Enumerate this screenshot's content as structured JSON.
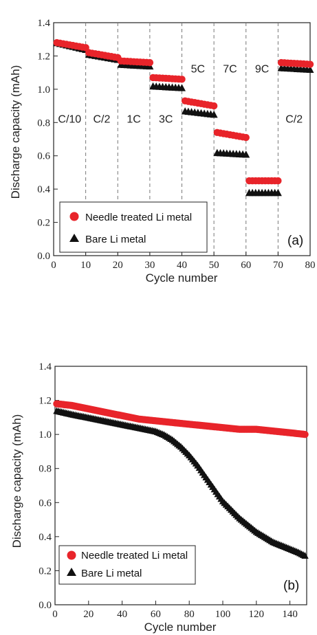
{
  "chart_data": [
    {
      "type": "scatter",
      "panel": "(a)",
      "xlabel": "Cycle number",
      "ylabel": "Discharge capacity (mAh)",
      "xlim": [
        0,
        80
      ],
      "ylim": [
        0.0,
        1.4
      ],
      "xticks": [
        0,
        10,
        20,
        30,
        40,
        50,
        60,
        70,
        80
      ],
      "yticks": [
        "0.0",
        "0.2",
        "0.4",
        "0.6",
        "0.8",
        "1.0",
        "1.2",
        "1.4"
      ],
      "grid": false,
      "legend_position": "bottom-left",
      "rate_boundaries": [
        10,
        20,
        30,
        40,
        50,
        60,
        70
      ],
      "rate_labels": [
        {
          "text": "C/10",
          "x": 5,
          "y": 0.8
        },
        {
          "text": "C/2",
          "x": 15,
          "y": 0.8
        },
        {
          "text": "1C",
          "x": 25,
          "y": 0.8
        },
        {
          "text": "3C",
          "x": 35,
          "y": 0.8
        },
        {
          "text": "5C",
          "x": 45,
          "y": 1.1
        },
        {
          "text": "7C",
          "x": 55,
          "y": 1.1
        },
        {
          "text": "9C",
          "x": 65,
          "y": 1.1
        },
        {
          "text": "C/2",
          "x": 75,
          "y": 0.8
        }
      ],
      "series": [
        {
          "name": "Needle treated Li metal",
          "marker": "circle",
          "color": "#e8242a",
          "segments": [
            {
              "x_start": 1,
              "x_end": 10,
              "y_start": 1.28,
              "y_end": 1.25
            },
            {
              "x_start": 11,
              "x_end": 20,
              "y_start": 1.22,
              "y_end": 1.19
            },
            {
              "x_start": 21,
              "x_end": 30,
              "y_start": 1.17,
              "y_end": 1.16
            },
            {
              "x_start": 31,
              "x_end": 40,
              "y_start": 1.07,
              "y_end": 1.06
            },
            {
              "x_start": 41,
              "x_end": 50,
              "y_start": 0.93,
              "y_end": 0.9
            },
            {
              "x_start": 51,
              "x_end": 60,
              "y_start": 0.74,
              "y_end": 0.71
            },
            {
              "x_start": 61,
              "x_end": 70,
              "y_start": 0.45,
              "y_end": 0.45
            },
            {
              "x_start": 71,
              "x_end": 80,
              "y_start": 1.16,
              "y_end": 1.15
            }
          ]
        },
        {
          "name": "Bare Li metal",
          "marker": "triangle",
          "color": "#111111",
          "segments": [
            {
              "x_start": 1,
              "x_end": 10,
              "y_start": 1.28,
              "y_end": 1.24
            },
            {
              "x_start": 11,
              "x_end": 20,
              "y_start": 1.21,
              "y_end": 1.18
            },
            {
              "x_start": 21,
              "x_end": 30,
              "y_start": 1.15,
              "y_end": 1.14
            },
            {
              "x_start": 31,
              "x_end": 40,
              "y_start": 1.02,
              "y_end": 1.01
            },
            {
              "x_start": 41,
              "x_end": 50,
              "y_start": 0.87,
              "y_end": 0.85
            },
            {
              "x_start": 51,
              "x_end": 60,
              "y_start": 0.62,
              "y_end": 0.61
            },
            {
              "x_start": 61,
              "x_end": 70,
              "y_start": 0.38,
              "y_end": 0.38
            },
            {
              "x_start": 71,
              "x_end": 80,
              "y_start": 1.13,
              "y_end": 1.12
            }
          ]
        }
      ]
    },
    {
      "type": "scatter",
      "panel": "(b)",
      "xlabel": "Cycle number",
      "ylabel": "Discharge capacity (mAh)",
      "xlim": [
        0,
        150
      ],
      "ylim": [
        0.0,
        1.4
      ],
      "xticks": [
        0,
        20,
        40,
        60,
        80,
        100,
        120,
        140
      ],
      "yticks": [
        "0.0",
        "0.2",
        "0.4",
        "0.6",
        "0.8",
        "1.0",
        "1.2",
        "1.4"
      ],
      "grid": false,
      "legend_position": "bottom-left",
      "series": [
        {
          "name": "Needle treated Li metal",
          "marker": "circle",
          "color": "#e8242a",
          "x": [
            1,
            10,
            20,
            30,
            40,
            50,
            60,
            70,
            80,
            90,
            100,
            110,
            120,
            130,
            140,
            149
          ],
          "y": [
            1.18,
            1.17,
            1.15,
            1.13,
            1.11,
            1.09,
            1.08,
            1.07,
            1.06,
            1.05,
            1.04,
            1.03,
            1.03,
            1.02,
            1.01,
            1.0
          ]
        },
        {
          "name": "Bare Li metal",
          "marker": "triangle",
          "color": "#111111",
          "x": [
            1,
            10,
            20,
            30,
            40,
            50,
            60,
            65,
            70,
            75,
            80,
            85,
            90,
            95,
            100,
            105,
            110,
            115,
            120,
            125,
            130,
            135,
            140,
            145,
            149
          ],
          "y": [
            1.14,
            1.12,
            1.1,
            1.08,
            1.06,
            1.04,
            1.02,
            1.0,
            0.97,
            0.93,
            0.88,
            0.82,
            0.75,
            0.68,
            0.61,
            0.56,
            0.51,
            0.47,
            0.43,
            0.4,
            0.37,
            0.35,
            0.33,
            0.31,
            0.29
          ]
        }
      ]
    }
  ],
  "legend": {
    "needle_label": "Needle treated Li metal",
    "bare_label": "Bare Li metal"
  },
  "panel_labels": [
    "(a)",
    "(b)"
  ]
}
